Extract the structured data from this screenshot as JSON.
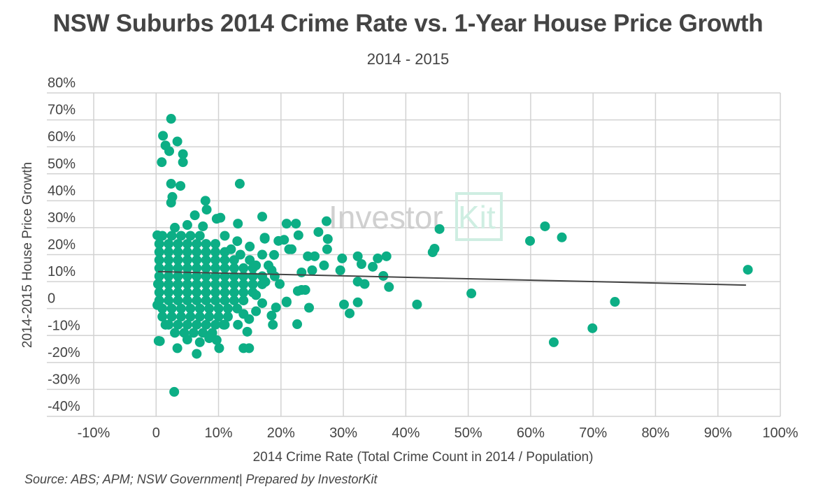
{
  "chart_data": {
    "type": "scatter",
    "title": "NSW Suburbs 2014 Crime Rate vs. 1-Year House Price Growth",
    "subtitle": "2014 - 2015",
    "xlabel": "2014 Crime Rate (Total Crime Count in 2014 / Population)",
    "ylabel": "2014-2015 House Price Growth",
    "xlim": [
      -10,
      100
    ],
    "ylim": [
      -40,
      80
    ],
    "x_ticks": [
      "-10%",
      "0",
      "10%",
      "20%",
      "30%",
      "40%",
      "50%",
      "60%",
      "70%",
      "80%",
      "90%",
      "100%"
    ],
    "y_ticks": [
      "80%",
      "70%",
      "60%",
      "50%",
      "40%",
      "30%",
      "20%",
      "10%",
      "0",
      "-10%",
      "-20%",
      "-30%",
      "-40%"
    ],
    "grid": true,
    "point_color": "#0cae85",
    "trendline_color": "#444444",
    "trendline": [
      [
        0.3,
        13.7
      ],
      [
        94.5,
        8.7
      ]
    ],
    "points": [
      [
        2.4,
        70.4
      ],
      [
        1.1,
        64.1
      ],
      [
        1.5,
        60.5
      ],
      [
        2.1,
        58.4
      ],
      [
        3.4,
        62.0
      ],
      [
        0.9,
        54.3
      ],
      [
        4.3,
        57.3
      ],
      [
        4.3,
        54.3
      ],
      [
        2.4,
        46.3
      ],
      [
        3.9,
        45.5
      ],
      [
        13.4,
        46.3
      ],
      [
        2.6,
        41.4
      ],
      [
        2.4,
        39.3
      ],
      [
        7.9,
        40.0
      ],
      [
        8.1,
        36.7
      ],
      [
        6.2,
        34.6
      ],
      [
        10.3,
        33.7
      ],
      [
        13.1,
        31.5
      ],
      [
        17.0,
        34.1
      ],
      [
        27.3,
        32.4
      ],
      [
        9.7,
        33.3
      ],
      [
        0.2,
        27.2
      ],
      [
        0.3,
        9.1
      ],
      [
        0.2,
        1.3
      ],
      [
        1.5,
        -6.0
      ],
      [
        0.4,
        -12.0
      ],
      [
        0.6,
        -12.1
      ],
      [
        3.4,
        -14.7
      ],
      [
        6.5,
        -16.8
      ],
      [
        10.1,
        -14.7
      ],
      [
        9.7,
        -11.7
      ],
      [
        2.9,
        -30.9
      ],
      [
        14.0,
        -14.7
      ],
      [
        14.9,
        -14.7
      ],
      [
        14.6,
        -8.6
      ],
      [
        13.1,
        -6.0
      ],
      [
        10.8,
        -6.0
      ],
      [
        18.7,
        -6.0
      ],
      [
        22.6,
        -5.8
      ],
      [
        14.9,
        -3.9
      ],
      [
        18.5,
        -2.6
      ],
      [
        19.2,
        0.4
      ],
      [
        20.9,
        2.3
      ],
      [
        20.9,
        2.6
      ],
      [
        24.5,
        0.3
      ],
      [
        23.3,
        6.9
      ],
      [
        22.7,
        6.5
      ],
      [
        23.9,
        6.9
      ],
      [
        18.5,
        14.2
      ],
      [
        17.5,
        9.9
      ],
      [
        19.8,
        9.1
      ],
      [
        25.0,
        14.2
      ],
      [
        23.3,
        13.4
      ],
      [
        24.3,
        19.4
      ],
      [
        25.4,
        19.4
      ],
      [
        20.9,
        31.5
      ],
      [
        22.4,
        31.5
      ],
      [
        22.8,
        27.2
      ],
      [
        20.5,
        25.5
      ],
      [
        21.7,
        22.0
      ],
      [
        17.4,
        25.9
      ],
      [
        19.6,
        25.1
      ],
      [
        21.3,
        22.0
      ],
      [
        18.9,
        19.9
      ],
      [
        17.4,
        26.3
      ],
      [
        27.5,
        25.8
      ],
      [
        27.4,
        22.0
      ],
      [
        26.9,
        16.0
      ],
      [
        26.0,
        28.4
      ],
      [
        29.5,
        14.2
      ],
      [
        29.8,
        18.6
      ],
      [
        32.3,
        19.4
      ],
      [
        32.9,
        16.5
      ],
      [
        35.5,
        18.6
      ],
      [
        36.9,
        19.4
      ],
      [
        34.7,
        15.5
      ],
      [
        36.4,
        12.1
      ],
      [
        37.3,
        8.0
      ],
      [
        32.3,
        10.0
      ],
      [
        33.4,
        9.1
      ],
      [
        32.3,
        2.3
      ],
      [
        30.1,
        1.5
      ],
      [
        31.0,
        -1.8
      ],
      [
        45.4,
        29.5
      ],
      [
        44.6,
        22.2
      ],
      [
        44.3,
        20.9
      ],
      [
        62.3,
        30.5
      ],
      [
        59.9,
        25.1
      ],
      [
        65.0,
        26.4
      ],
      [
        94.8,
        14.4
      ],
      [
        50.5,
        5.6
      ],
      [
        41.8,
        1.5
      ],
      [
        73.5,
        2.5
      ],
      [
        69.9,
        -7.3
      ],
      [
        63.7,
        -12.5
      ],
      [
        1,
        27
      ],
      [
        2.5,
        27
      ],
      [
        4,
        27
      ],
      [
        5.5,
        27
      ],
      [
        7,
        27
      ],
      [
        3,
        30
      ],
      [
        5,
        31
      ],
      [
        7.5,
        30.5
      ],
      [
        0.5,
        24
      ],
      [
        2,
        24
      ],
      [
        3.5,
        24
      ],
      [
        5,
        24
      ],
      [
        6.5,
        24
      ],
      [
        8,
        24
      ],
      [
        9.5,
        24
      ],
      [
        0.5,
        21
      ],
      [
        2,
        21
      ],
      [
        3.5,
        21
      ],
      [
        5,
        21
      ],
      [
        6.5,
        21
      ],
      [
        8,
        21
      ],
      [
        9.5,
        21
      ],
      [
        11,
        21
      ],
      [
        0.5,
        18
      ],
      [
        2,
        18
      ],
      [
        3.5,
        18
      ],
      [
        5,
        18
      ],
      [
        6.5,
        18
      ],
      [
        8,
        18
      ],
      [
        9.5,
        18
      ],
      [
        11,
        18
      ],
      [
        12.5,
        18
      ],
      [
        0.5,
        15
      ],
      [
        2,
        15
      ],
      [
        3.5,
        15
      ],
      [
        5,
        15
      ],
      [
        6.5,
        15
      ],
      [
        8,
        15
      ],
      [
        9.5,
        15
      ],
      [
        11,
        15
      ],
      [
        12.5,
        15
      ],
      [
        14,
        15
      ],
      [
        15.5,
        15
      ],
      [
        0.5,
        12
      ],
      [
        2,
        12
      ],
      [
        3.5,
        12
      ],
      [
        5,
        12
      ],
      [
        6.5,
        12
      ],
      [
        8,
        12
      ],
      [
        9.5,
        12
      ],
      [
        11,
        12
      ],
      [
        12.5,
        12
      ],
      [
        14,
        12
      ],
      [
        15.5,
        12
      ],
      [
        17,
        12
      ],
      [
        0.5,
        9
      ],
      [
        2,
        9
      ],
      [
        3.5,
        9
      ],
      [
        5,
        9
      ],
      [
        6.5,
        9
      ],
      [
        8,
        9
      ],
      [
        9.5,
        9
      ],
      [
        11,
        9
      ],
      [
        12.5,
        9
      ],
      [
        14,
        9
      ],
      [
        15.5,
        9
      ],
      [
        17,
        9
      ],
      [
        0.5,
        6
      ],
      [
        2,
        6
      ],
      [
        3.5,
        6
      ],
      [
        5,
        6
      ],
      [
        6.5,
        6
      ],
      [
        8,
        6
      ],
      [
        9.5,
        6
      ],
      [
        11,
        6
      ],
      [
        12.5,
        6
      ],
      [
        14,
        6
      ],
      [
        15.5,
        6
      ],
      [
        0.5,
        3
      ],
      [
        2,
        3
      ],
      [
        3.5,
        3
      ],
      [
        5,
        3
      ],
      [
        6.5,
        3
      ],
      [
        8,
        3
      ],
      [
        9.5,
        3
      ],
      [
        11,
        3
      ],
      [
        12.5,
        3
      ],
      [
        14,
        3
      ],
      [
        1,
        0
      ],
      [
        2.5,
        0
      ],
      [
        4,
        0
      ],
      [
        5.5,
        0
      ],
      [
        7,
        0
      ],
      [
        8.5,
        0
      ],
      [
        10,
        0
      ],
      [
        11.5,
        0
      ],
      [
        13,
        0
      ],
      [
        1,
        -3
      ],
      [
        2.5,
        -3
      ],
      [
        4,
        -3
      ],
      [
        5.5,
        -3
      ],
      [
        7,
        -3
      ],
      [
        8.5,
        -3
      ],
      [
        10,
        -3
      ],
      [
        11.5,
        -3
      ],
      [
        2,
        -6
      ],
      [
        3.5,
        -6
      ],
      [
        5,
        -6
      ],
      [
        6.5,
        -6
      ],
      [
        8,
        -6
      ],
      [
        9.5,
        -6
      ],
      [
        11,
        -6
      ],
      [
        3,
        -9
      ],
      [
        4.5,
        -9
      ],
      [
        6,
        -9
      ],
      [
        7.5,
        -9
      ],
      [
        9,
        -9
      ],
      [
        5,
        -11.5
      ],
      [
        7,
        -12.5
      ],
      [
        8.5,
        -11
      ],
      [
        12,
        22
      ],
      [
        13.5,
        20
      ],
      [
        15,
        18
      ],
      [
        16,
        16
      ],
      [
        13,
        25
      ],
      [
        11,
        27
      ],
      [
        15,
        23
      ],
      [
        17,
        20
      ],
      [
        18,
        16
      ],
      [
        19,
        12
      ],
      [
        16,
        5
      ],
      [
        17,
        2
      ],
      [
        16,
        -1
      ],
      [
        14,
        -2
      ]
    ]
  },
  "watermark": {
    "text_left": "Investor",
    "text_right": "Kit"
  },
  "footer": {
    "source": "Source: ABS; APM; NSW Government| Prepared by InvestorKit"
  }
}
